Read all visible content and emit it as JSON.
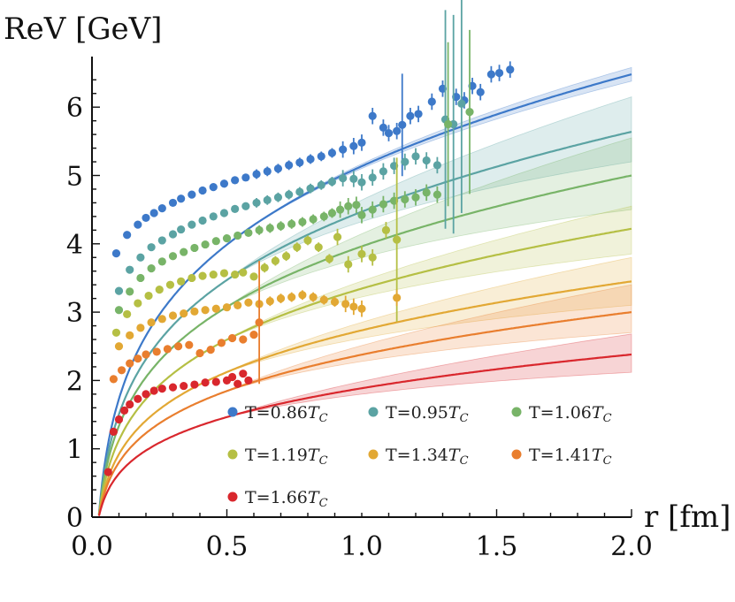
{
  "chart_data": {
    "type": "line",
    "title": "",
    "ylabel": "ReV [GeV]",
    "xlabel": "r [fm]",
    "xlim": [
      0,
      2.0
    ],
    "ylim": [
      0,
      6.7
    ],
    "x_ticks": [
      "0.0",
      "0.5",
      "1.0",
      "1.5",
      "2.0"
    ],
    "x_tick_values": [
      0,
      0.5,
      1.0,
      1.5,
      2.0
    ],
    "y_ticks": [
      "0",
      "1",
      "2",
      "3",
      "4",
      "5",
      "6"
    ],
    "y_tick_values": [
      0,
      1,
      2,
      3,
      4,
      5,
      6
    ],
    "legend_position": "lower-right",
    "series": [
      {
        "name": "T=0.86",
        "sub": "C",
        "color": "#3d79c9",
        "points": [
          [
            0.09,
            3.86
          ],
          [
            0.13,
            4.13
          ],
          [
            0.17,
            4.28
          ],
          [
            0.2,
            4.38
          ],
          [
            0.23,
            4.45
          ],
          [
            0.26,
            4.52
          ],
          [
            0.3,
            4.6
          ],
          [
            0.33,
            4.66
          ],
          [
            0.37,
            4.72
          ],
          [
            0.41,
            4.78
          ],
          [
            0.45,
            4.83
          ],
          [
            0.49,
            4.88
          ],
          [
            0.53,
            4.93
          ],
          [
            0.57,
            4.97
          ],
          [
            0.61,
            5.02
          ],
          [
            0.65,
            5.06
          ],
          [
            0.69,
            5.1
          ],
          [
            0.73,
            5.15
          ],
          [
            0.77,
            5.19
          ],
          [
            0.81,
            5.24
          ],
          [
            0.85,
            5.28
          ],
          [
            0.89,
            5.33
          ],
          [
            0.93,
            5.38
          ],
          [
            0.97,
            5.43
          ],
          [
            1.0,
            5.48
          ],
          [
            1.04,
            5.87
          ],
          [
            1.08,
            5.7
          ],
          [
            1.1,
            5.62
          ],
          [
            1.13,
            5.65
          ],
          [
            1.15,
            5.74
          ],
          [
            1.18,
            5.87
          ],
          [
            1.21,
            5.9
          ],
          [
            1.26,
            6.08
          ],
          [
            1.3,
            6.27
          ],
          [
            1.35,
            6.15
          ],
          [
            1.38,
            6.1
          ],
          [
            1.41,
            6.31
          ],
          [
            1.44,
            6.22
          ],
          [
            1.48,
            6.48
          ],
          [
            1.51,
            6.5
          ],
          [
            1.55,
            6.55
          ]
        ]
      },
      {
        "name": "T=0.95",
        "sub": "C",
        "color": "#5ba3a3",
        "points": [
          [
            0.1,
            3.31
          ],
          [
            0.14,
            3.62
          ],
          [
            0.18,
            3.8
          ],
          [
            0.22,
            3.95
          ],
          [
            0.26,
            4.05
          ],
          [
            0.3,
            4.14
          ],
          [
            0.33,
            4.21
          ],
          [
            0.37,
            4.28
          ],
          [
            0.41,
            4.34
          ],
          [
            0.45,
            4.4
          ],
          [
            0.49,
            4.45
          ],
          [
            0.53,
            4.51
          ],
          [
            0.57,
            4.55
          ],
          [
            0.61,
            4.6
          ],
          [
            0.65,
            4.64
          ],
          [
            0.69,
            4.68
          ],
          [
            0.73,
            4.72
          ],
          [
            0.77,
            4.76
          ],
          [
            0.81,
            4.81
          ],
          [
            0.85,
            4.86
          ],
          [
            0.89,
            4.91
          ],
          [
            0.93,
            4.96
          ],
          [
            0.97,
            4.95
          ],
          [
            1.0,
            4.9
          ],
          [
            1.04,
            4.97
          ],
          [
            1.08,
            5.06
          ],
          [
            1.12,
            5.14
          ],
          [
            1.16,
            5.2
          ],
          [
            1.2,
            5.28
          ],
          [
            1.24,
            5.22
          ],
          [
            1.28,
            5.15
          ],
          [
            1.31,
            5.82
          ],
          [
            1.34,
            5.75
          ],
          [
            1.37,
            6.05
          ]
        ]
      },
      {
        "name": "T=1.06",
        "sub": "C",
        "color": "#78b468",
        "points": [
          [
            0.1,
            3.03
          ],
          [
            0.14,
            3.3
          ],
          [
            0.18,
            3.5
          ],
          [
            0.22,
            3.64
          ],
          [
            0.26,
            3.74
          ],
          [
            0.3,
            3.82
          ],
          [
            0.34,
            3.88
          ],
          [
            0.38,
            3.94
          ],
          [
            0.42,
            3.99
          ],
          [
            0.46,
            4.04
          ],
          [
            0.5,
            4.08
          ],
          [
            0.54,
            4.12
          ],
          [
            0.58,
            4.16
          ],
          [
            0.62,
            4.2
          ],
          [
            0.66,
            4.23
          ],
          [
            0.7,
            4.26
          ],
          [
            0.74,
            4.29
          ],
          [
            0.78,
            4.32
          ],
          [
            0.82,
            4.36
          ],
          [
            0.86,
            4.4
          ],
          [
            0.89,
            4.45
          ],
          [
            0.92,
            4.5
          ],
          [
            0.95,
            4.55
          ],
          [
            0.98,
            4.57
          ],
          [
            1.0,
            4.42
          ],
          [
            1.04,
            4.5
          ],
          [
            1.08,
            4.58
          ],
          [
            1.12,
            4.63
          ],
          [
            1.16,
            4.65
          ],
          [
            1.2,
            4.68
          ],
          [
            1.24,
            4.75
          ],
          [
            1.28,
            4.72
          ],
          [
            1.32,
            5.75
          ],
          [
            1.4,
            5.93
          ]
        ]
      },
      {
        "name": "T=1.19",
        "sub": "C",
        "color": "#b5bf44",
        "points": [
          [
            0.09,
            2.7
          ],
          [
            0.13,
            2.97
          ],
          [
            0.17,
            3.13
          ],
          [
            0.21,
            3.24
          ],
          [
            0.25,
            3.33
          ],
          [
            0.29,
            3.4
          ],
          [
            0.33,
            3.45
          ],
          [
            0.37,
            3.5
          ],
          [
            0.41,
            3.53
          ],
          [
            0.45,
            3.55
          ],
          [
            0.49,
            3.57
          ],
          [
            0.53,
            3.55
          ],
          [
            0.56,
            3.58
          ],
          [
            0.6,
            3.52
          ],
          [
            0.64,
            3.65
          ],
          [
            0.68,
            3.75
          ],
          [
            0.72,
            3.82
          ],
          [
            0.76,
            3.95
          ],
          [
            0.8,
            4.05
          ],
          [
            0.84,
            3.95
          ],
          [
            0.88,
            3.78
          ],
          [
            0.91,
            4.1
          ],
          [
            0.95,
            3.7
          ],
          [
            1.0,
            3.85
          ],
          [
            1.04,
            3.8
          ],
          [
            1.09,
            4.2
          ],
          [
            1.13,
            4.06
          ]
        ]
      },
      {
        "name": "T=1.34",
        "sub": "C",
        "color": "#e2a834",
        "points": [
          [
            0.1,
            2.5
          ],
          [
            0.14,
            2.66
          ],
          [
            0.18,
            2.77
          ],
          [
            0.22,
            2.85
          ],
          [
            0.26,
            2.9
          ],
          [
            0.3,
            2.95
          ],
          [
            0.34,
            2.98
          ],
          [
            0.38,
            3.01
          ],
          [
            0.42,
            3.03
          ],
          [
            0.46,
            3.05
          ],
          [
            0.5,
            3.07
          ],
          [
            0.54,
            3.1
          ],
          [
            0.58,
            3.14
          ],
          [
            0.62,
            3.12
          ],
          [
            0.66,
            3.16
          ],
          [
            0.7,
            3.2
          ],
          [
            0.74,
            3.22
          ],
          [
            0.78,
            3.25
          ],
          [
            0.82,
            3.22
          ],
          [
            0.86,
            3.18
          ],
          [
            0.9,
            3.15
          ],
          [
            0.94,
            3.12
          ],
          [
            0.97,
            3.08
          ],
          [
            1.0,
            3.05
          ],
          [
            1.13,
            3.21
          ]
        ]
      },
      {
        "name": "T=1.41",
        "sub": "C",
        "color": "#e97e2e",
        "points": [
          [
            0.08,
            2.02
          ],
          [
            0.11,
            2.15
          ],
          [
            0.14,
            2.25
          ],
          [
            0.17,
            2.32
          ],
          [
            0.2,
            2.38
          ],
          [
            0.24,
            2.42
          ],
          [
            0.28,
            2.46
          ],
          [
            0.32,
            2.5
          ],
          [
            0.36,
            2.52
          ],
          [
            0.4,
            2.4
          ],
          [
            0.44,
            2.45
          ],
          [
            0.48,
            2.55
          ],
          [
            0.52,
            2.62
          ],
          [
            0.56,
            2.6
          ],
          [
            0.6,
            2.67
          ],
          [
            0.62,
            2.85
          ]
        ]
      },
      {
        "name": "T=1.66",
        "sub": "C",
        "color": "#d9272d",
        "points": [
          [
            0.06,
            0.66
          ],
          [
            0.08,
            1.25
          ],
          [
            0.1,
            1.43
          ],
          [
            0.12,
            1.56
          ],
          [
            0.14,
            1.65
          ],
          [
            0.17,
            1.73
          ],
          [
            0.2,
            1.8
          ],
          [
            0.23,
            1.85
          ],
          [
            0.26,
            1.88
          ],
          [
            0.3,
            1.9
          ],
          [
            0.34,
            1.92
          ],
          [
            0.38,
            1.94
          ],
          [
            0.42,
            1.97
          ],
          [
            0.46,
            1.98
          ],
          [
            0.5,
            2.0
          ],
          [
            0.52,
            2.05
          ],
          [
            0.54,
            1.95
          ],
          [
            0.56,
            2.1
          ],
          [
            0.58,
            2.0
          ]
        ]
      }
    ],
    "fits": [
      {
        "color": "#3d79c9",
        "end": 6.48,
        "band_hi": 6.58,
        "band_lo": 6.38
      },
      {
        "color": "#5ba3a3",
        "end": 5.64,
        "band_hi": 6.15,
        "band_lo": 5.2
      },
      {
        "color": "#78b468",
        "end": 5.0,
        "band_hi": 5.55,
        "band_lo": 4.5
      },
      {
        "color": "#b5bf44",
        "end": 4.22,
        "band_hi": 4.55,
        "band_lo": 3.85
      },
      {
        "color": "#e2a834",
        "end": 3.45,
        "band_hi": 3.8,
        "band_lo": 3.1
      },
      {
        "color": "#e97e2e",
        "end": 3.0,
        "band_hi": 3.4,
        "band_lo": 2.7
      },
      {
        "color": "#d9272d",
        "end": 2.38,
        "band_hi": 2.68,
        "band_lo": 2.12
      }
    ]
  }
}
